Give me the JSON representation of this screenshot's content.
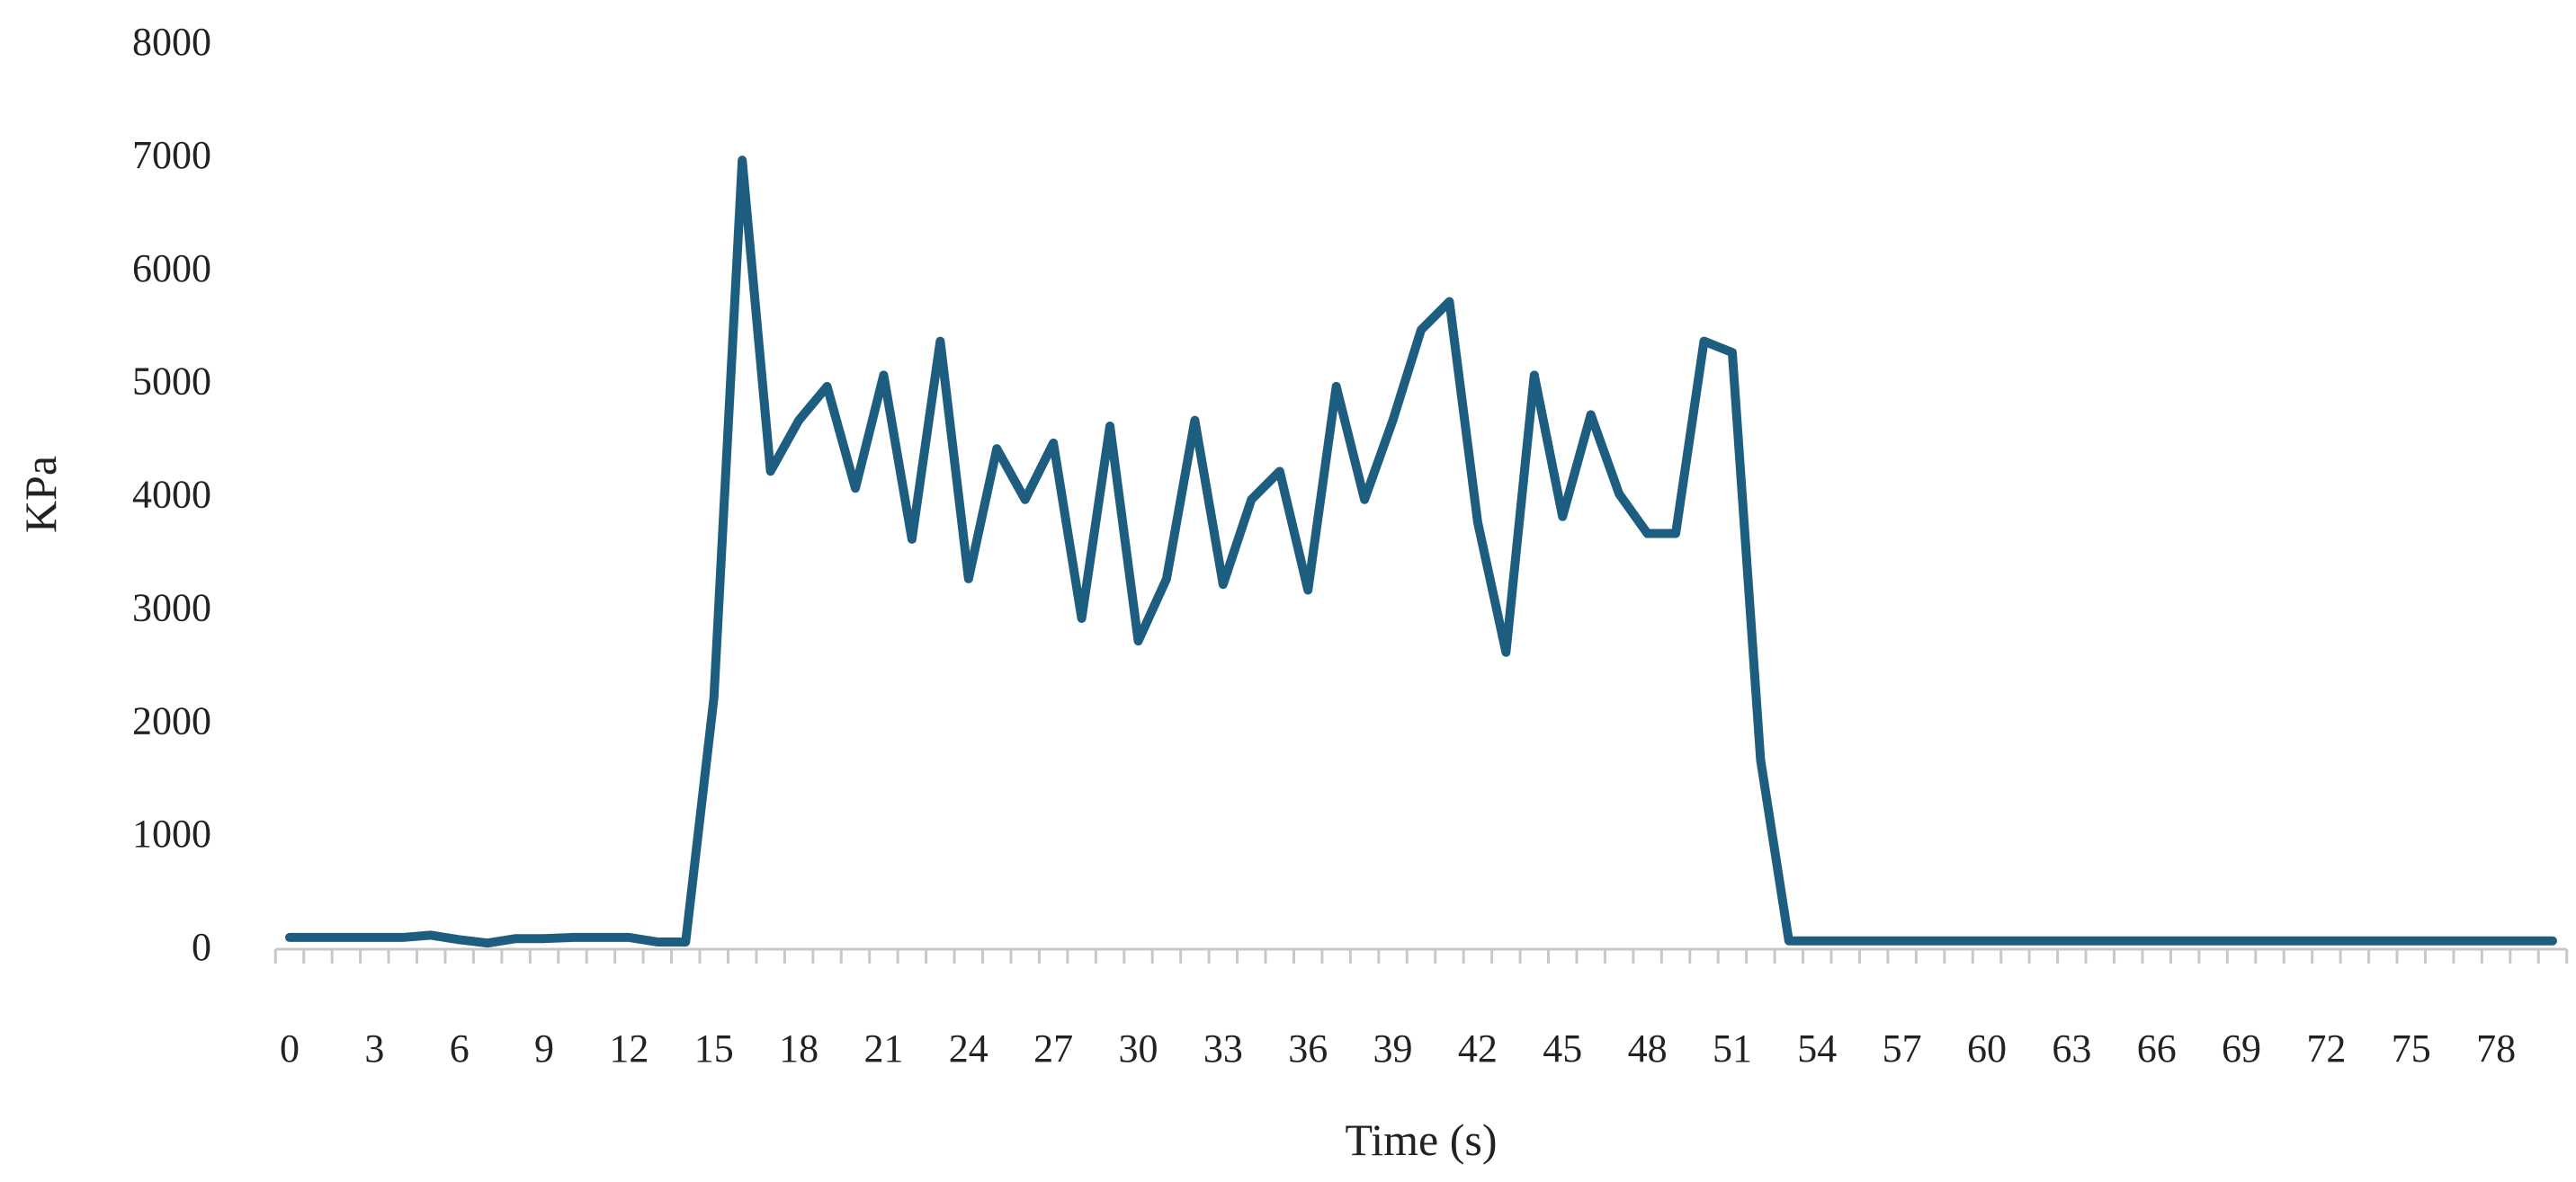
{
  "chart_data": {
    "type": "line",
    "title": "",
    "xlabel": "Time (s)",
    "ylabel": "KPa",
    "ylim": [
      0,
      8000
    ],
    "yticks": [
      0,
      1000,
      2000,
      3000,
      4000,
      5000,
      6000,
      7000,
      8000
    ],
    "xlim": [
      0,
      80
    ],
    "xtick_step": 3,
    "xticks": [
      0,
      3,
      6,
      9,
      12,
      15,
      18,
      21,
      24,
      27,
      30,
      33,
      36,
      39,
      42,
      45,
      48,
      51,
      54,
      57,
      60,
      63,
      66,
      69,
      72,
      75,
      78
    ],
    "grid": false,
    "legend": "none",
    "series": [
      {
        "color": "#1d5e80",
        "x": [
          0,
          1,
          2,
          3,
          4,
          5,
          6,
          7,
          8,
          9,
          10,
          11,
          12,
          13,
          14,
          15,
          16,
          17,
          18,
          19,
          20,
          21,
          22,
          23,
          24,
          25,
          26,
          27,
          28,
          29,
          30,
          31,
          32,
          33,
          34,
          35,
          36,
          37,
          38,
          39,
          40,
          41,
          42,
          43,
          44,
          45,
          46,
          47,
          48,
          49,
          50,
          51,
          52,
          53,
          54,
          55,
          56,
          57,
          58,
          59,
          60,
          61,
          62,
          63,
          64,
          65,
          66,
          67,
          68,
          69,
          70,
          71,
          72,
          73,
          74,
          75,
          76,
          77,
          78,
          79,
          80
        ],
        "values": [
          80,
          80,
          80,
          80,
          80,
          100,
          60,
          30,
          70,
          70,
          80,
          80,
          80,
          40,
          40,
          2200,
          6950,
          4200,
          4650,
          4950,
          4050,
          5050,
          3600,
          5350,
          3250,
          4400,
          3950,
          4450,
          2900,
          4600,
          2700,
          3250,
          4650,
          3200,
          3950,
          4200,
          3150,
          4950,
          3950,
          4650,
          5450,
          5700,
          3750,
          2600,
          5050,
          3800,
          4700,
          4000,
          3650,
          3650,
          5350,
          5250,
          1650,
          50,
          50,
          50,
          50,
          50,
          50,
          50,
          50,
          50,
          50,
          50,
          50,
          50,
          50,
          50,
          50,
          50,
          50,
          50,
          50,
          50,
          50,
          50,
          50,
          50,
          50,
          50,
          50
        ]
      }
    ]
  }
}
